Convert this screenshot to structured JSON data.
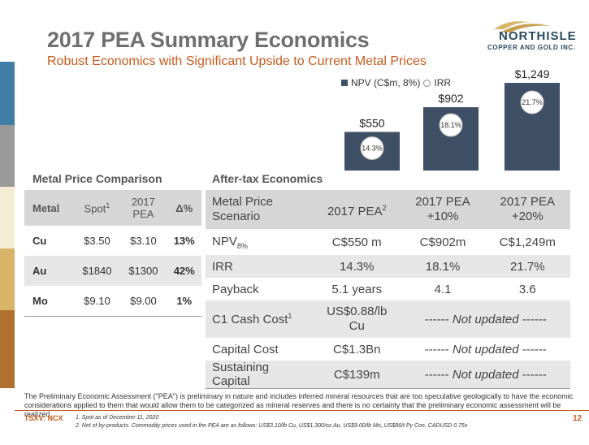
{
  "title": "2017 PEA Summary Economics",
  "subtitle": "Robust Economics with Significant Upside to Current Metal Prices",
  "logo": {
    "name": "NORTHISLE",
    "sub": "COPPER AND GOLD INC."
  },
  "colors": {
    "accent": "#c65a1e",
    "bar": "#3e4f66",
    "strips": [
      "#3f7ea6",
      "#9a9a9a",
      "#f3edd6",
      "#d9b56a",
      "#b07030"
    ]
  },
  "chart_data": {
    "type": "bar",
    "categories": [
      "2017 PEA",
      "2017 PEA +10%",
      "2017 PEA +20%"
    ],
    "series": [
      {
        "name": "NPV (C$m, 8%)",
        "values": [
          550,
          902,
          1249
        ],
        "labels": [
          "$550",
          "$902",
          "$1,249"
        ]
      },
      {
        "name": "IRR",
        "values": [
          14.3,
          18.1,
          21.7
        ],
        "labels": [
          "14.3%",
          "18.1%",
          "21.7%"
        ]
      }
    ],
    "ylim": [
      0,
      1400
    ],
    "legend": "top"
  },
  "metal_price": {
    "heading": "Metal Price Comparison",
    "headers": {
      "metal": "Metal",
      "spot": "Spot",
      "spot_sup": "1",
      "pea": "2017 PEA",
      "delta": "Δ%"
    },
    "rows": [
      {
        "metal": "Cu",
        "spot": "$3.50",
        "pea": "$3.10",
        "delta": "13%"
      },
      {
        "metal": "Au",
        "spot": "$1840",
        "pea": "$1300",
        "delta": "42%"
      },
      {
        "metal": "Mo",
        "spot": "$9.10",
        "pea": "$9.00",
        "delta": "1%"
      }
    ]
  },
  "after_tax": {
    "heading": "After-tax Economics",
    "headers": {
      "scenario": "Metal Price Scenario",
      "pea": "2017 PEA",
      "pea_sup": "2",
      "pea10_a": "2017 PEA",
      "pea10_b": "+10%",
      "pea20_a": "2017 PEA",
      "pea20_b": "+20%"
    },
    "rows": {
      "npv": {
        "label": "NPV",
        "sub": "8%",
        "pea": "C$550 m",
        "pea10": "C$902m",
        "pea20": "C$1,249m"
      },
      "irr": {
        "label": "IRR",
        "pea": "14.3%",
        "pea10": "18.1%",
        "pea20": "21.7%"
      },
      "payback": {
        "label": "Payback",
        "pea": "5.1 years",
        "pea10": "4.1",
        "pea20": "3.6"
      },
      "c1": {
        "label": "C1 Cash Cost",
        "sup": "1",
        "pea_a": "US$0.88/lb",
        "pea_b": "Cu",
        "not_updated": "Not updated",
        "dash": "------"
      },
      "capital": {
        "label": "Capital Cost",
        "pea": "C$1.3Bn",
        "not_updated": "Not updated",
        "dash": "------"
      },
      "sustaining": {
        "label": "Sustaining Capital",
        "pea": "C$139m",
        "not_updated": "Not updated",
        "dash": "------"
      }
    }
  },
  "disclaimer": "The Preliminary Economic Assessment (\"PEA\") is preliminary in nature and includes inferred mineral resources that are too speculative geologically to have the economic considerations applied to them that would allow them to be categorized as mineral reserves and there is no certainty that the preliminary economic assessment will be realized.",
  "footer": {
    "ticker": "TSXV: NCX",
    "note1": "1.   Spot as of December 11, 2020",
    "note2": "2.   Net of by-products. Commodity prices used in the PEA are as follows: US$3.10/lb Cu, US$1,300/oz Au, US$9.00/lb Mo, US$86/t Py Con, CADUSD 0.75x",
    "page": "12"
  }
}
